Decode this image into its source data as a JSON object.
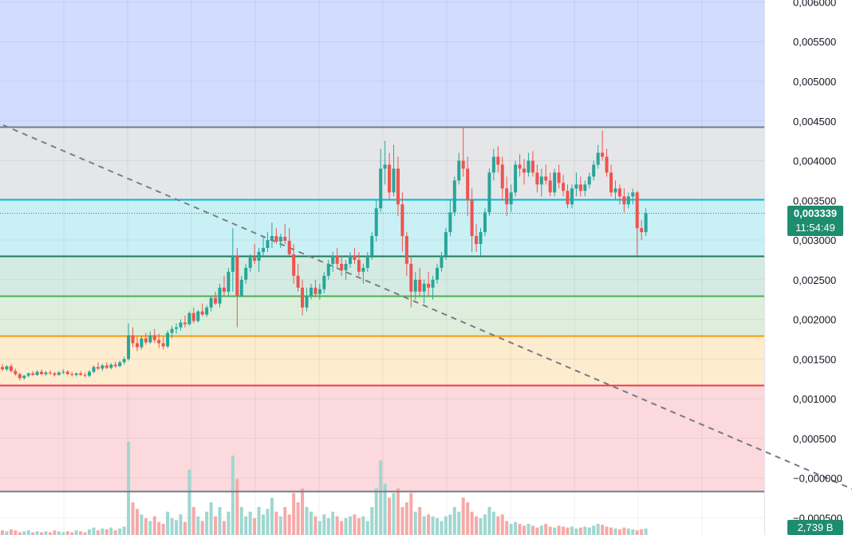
{
  "chart_data": {
    "type": "candlestick",
    "title": "",
    "xlabel": "",
    "ylabel": "",
    "ylim": [
      -0.00053,
      0.006
    ],
    "y_ticks": [
      "0,006000",
      "0,005500",
      "0,005000",
      "0,004500",
      "0,004000",
      "0,003500",
      "0,003000",
      "0,002500",
      "0,002000",
      "0,001500",
      "0,001000",
      "0,000500",
      "−0,000000",
      "−0,000500"
    ],
    "y_tick_values": [
      0.006,
      0.0055,
      0.005,
      0.0045,
      0.004,
      0.0035,
      0.003,
      0.0025,
      0.002,
      0.0015,
      0.001,
      0.0005,
      0.0,
      -0.0005
    ],
    "last_price": "0,003339",
    "last_price_value": 0.003339,
    "countdown": "11:54:49",
    "volume_last": "2,739 B",
    "levels": [
      {
        "price": 0.004427,
        "color": "#787b86"
      },
      {
        "price": 0.003516,
        "color": "#00bcd4"
      },
      {
        "price": 0.0028,
        "color": "#1e7a5a"
      },
      {
        "price": 0.002296,
        "color": "#4caf50"
      },
      {
        "price": 0.001795,
        "color": "#ff9800"
      },
      {
        "price": 0.001168,
        "color": "#f23645"
      },
      {
        "price": -0.00016,
        "color": "#787b86"
      }
    ],
    "zones": [
      {
        "from": 0.004427,
        "to": 0.0062,
        "color": "#d1dcff"
      },
      {
        "from": 0.003516,
        "to": 0.004427,
        "color": "#e5e6e8"
      },
      {
        "from": 0.0028,
        "to": 0.003516,
        "color": "#c9f0f5"
      },
      {
        "from": 0.002296,
        "to": 0.0028,
        "color": "#d3ebe2"
      },
      {
        "from": 0.001795,
        "to": 0.002296,
        "color": "#ddefdc"
      },
      {
        "from": 0.001168,
        "to": 0.001795,
        "color": "#feeccf"
      },
      {
        "from": -0.00016,
        "to": 0.001168,
        "color": "#fbd9dd"
      }
    ],
    "trendline": {
      "from": {
        "index": -2,
        "price": 0.0045
      },
      "to": {
        "index": 196,
        "price": -0.00015
      }
    },
    "colors": {
      "up": "#26a69a",
      "down": "#ef5350",
      "up_volume": "#9fd7d0",
      "down_volume": "#f5aaa8",
      "badge": "#1e8c6e"
    },
    "price_scale_label": "0,003339",
    "candles": {
      "start_index": 0,
      "note_series": "OHLC per bar",
      "ohlc": [
        [
          0.0014,
          0.00144,
          0.00135,
          0.00137
        ],
        [
          0.00137,
          0.00142,
          0.00135,
          0.00141
        ],
        [
          0.00141,
          0.00144,
          0.00133,
          0.00135
        ],
        [
          0.00135,
          0.00138,
          0.00129,
          0.00131
        ],
        [
          0.00131,
          0.00133,
          0.00123,
          0.00126
        ],
        [
          0.00126,
          0.0013,
          0.00124,
          0.00129
        ],
        [
          0.00129,
          0.00133,
          0.00127,
          0.00132
        ],
        [
          0.00132,
          0.00135,
          0.00129,
          0.0013
        ],
        [
          0.0013,
          0.00136,
          0.00129,
          0.00134
        ],
        [
          0.00134,
          0.00137,
          0.0013,
          0.00131
        ],
        [
          0.00131,
          0.00135,
          0.00129,
          0.00133
        ],
        [
          0.00133,
          0.00136,
          0.0013,
          0.00132
        ],
        [
          0.00132,
          0.00134,
          0.00128,
          0.0013
        ],
        [
          0.0013,
          0.00135,
          0.00129,
          0.00133
        ],
        [
          0.00133,
          0.00137,
          0.00131,
          0.00134
        ],
        [
          0.00134,
          0.00136,
          0.0013,
          0.00131
        ],
        [
          0.00131,
          0.00134,
          0.00128,
          0.0013
        ],
        [
          0.0013,
          0.00133,
          0.00128,
          0.00132
        ],
        [
          0.00132,
          0.00135,
          0.00129,
          0.0013
        ],
        [
          0.0013,
          0.00133,
          0.00127,
          0.00129
        ],
        [
          0.00129,
          0.00136,
          0.00127,
          0.00134
        ],
        [
          0.00134,
          0.00142,
          0.00132,
          0.0014
        ],
        [
          0.0014,
          0.00146,
          0.00136,
          0.00138
        ],
        [
          0.00138,
          0.00144,
          0.00135,
          0.00142
        ],
        [
          0.00142,
          0.00146,
          0.00137,
          0.00139
        ],
        [
          0.00139,
          0.00145,
          0.00137,
          0.00143
        ],
        [
          0.00143,
          0.00147,
          0.00139,
          0.00141
        ],
        [
          0.00141,
          0.00148,
          0.0014,
          0.00146
        ],
        [
          0.00146,
          0.00153,
          0.00143,
          0.0015
        ],
        [
          0.0015,
          0.00195,
          0.00148,
          0.0018
        ],
        [
          0.0018,
          0.0019,
          0.00165,
          0.0017
        ],
        [
          0.0017,
          0.00178,
          0.0016,
          0.00165
        ],
        [
          0.00165,
          0.0018,
          0.00162,
          0.00176
        ],
        [
          0.00176,
          0.00183,
          0.00168,
          0.00171
        ],
        [
          0.00171,
          0.00185,
          0.00169,
          0.0018
        ],
        [
          0.0018,
          0.00188,
          0.0017,
          0.00174
        ],
        [
          0.00174,
          0.00182,
          0.00164,
          0.0017
        ],
        [
          0.0017,
          0.00178,
          0.00162,
          0.00166
        ],
        [
          0.00166,
          0.00186,
          0.00164,
          0.00183
        ],
        [
          0.00183,
          0.00192,
          0.00176,
          0.00188
        ],
        [
          0.00188,
          0.00195,
          0.00182,
          0.0019
        ],
        [
          0.0019,
          0.002,
          0.00186,
          0.00196
        ],
        [
          0.00196,
          0.00205,
          0.0019,
          0.00194
        ],
        [
          0.00194,
          0.0021,
          0.00192,
          0.00208
        ],
        [
          0.00208,
          0.00215,
          0.00195,
          0.00198
        ],
        [
          0.00198,
          0.00212,
          0.00196,
          0.0021
        ],
        [
          0.0021,
          0.0022,
          0.00204,
          0.00206
        ],
        [
          0.00206,
          0.00218,
          0.00203,
          0.00215
        ],
        [
          0.00215,
          0.0023,
          0.0021,
          0.00227
        ],
        [
          0.00227,
          0.00235,
          0.00218,
          0.0022
        ],
        [
          0.0022,
          0.00245,
          0.00215,
          0.0024
        ],
        [
          0.0024,
          0.00255,
          0.0023,
          0.00235
        ],
        [
          0.00235,
          0.00265,
          0.0023,
          0.0026
        ],
        [
          0.0026,
          0.00315,
          0.00235,
          0.0028
        ],
        [
          0.0028,
          0.0029,
          0.0019,
          0.0023
        ],
        [
          0.0023,
          0.00255,
          0.00228,
          0.0025
        ],
        [
          0.0025,
          0.0027,
          0.00245,
          0.00265
        ],
        [
          0.00265,
          0.00282,
          0.0026,
          0.00278
        ],
        [
          0.00278,
          0.00295,
          0.0027,
          0.00274
        ],
        [
          0.00274,
          0.0029,
          0.0026,
          0.00285
        ],
        [
          0.00285,
          0.00305,
          0.0028,
          0.0029
        ],
        [
          0.0029,
          0.0031,
          0.00285,
          0.003
        ],
        [
          0.003,
          0.00322,
          0.0029,
          0.00305
        ],
        [
          0.00305,
          0.00315,
          0.00295,
          0.00298
        ],
        [
          0.00298,
          0.00308,
          0.0029,
          0.00304
        ],
        [
          0.00304,
          0.0032,
          0.00295,
          0.00299
        ],
        [
          0.00299,
          0.00315,
          0.0028,
          0.00282
        ],
        [
          0.00282,
          0.00295,
          0.00245,
          0.00255
        ],
        [
          0.00255,
          0.0027,
          0.00235,
          0.0024
        ],
        [
          0.0024,
          0.0025,
          0.00205,
          0.00215
        ],
        [
          0.00215,
          0.0024,
          0.0021,
          0.0023
        ],
        [
          0.0023,
          0.00245,
          0.00225,
          0.0024
        ],
        [
          0.0024,
          0.0025,
          0.00228,
          0.00232
        ],
        [
          0.00232,
          0.00245,
          0.00225,
          0.00238
        ],
        [
          0.00238,
          0.0026,
          0.00233,
          0.00255
        ],
        [
          0.00255,
          0.00275,
          0.0025,
          0.0027
        ],
        [
          0.0027,
          0.00285,
          0.0026,
          0.0028
        ],
        [
          0.0028,
          0.0029,
          0.00265,
          0.0027
        ],
        [
          0.0027,
          0.0028,
          0.00255,
          0.00262
        ],
        [
          0.00262,
          0.00275,
          0.0025,
          0.0027
        ],
        [
          0.0027,
          0.00285,
          0.00265,
          0.0028
        ],
        [
          0.0028,
          0.0029,
          0.0027,
          0.00275
        ],
        [
          0.00275,
          0.00285,
          0.00255,
          0.0026
        ],
        [
          0.0026,
          0.0027,
          0.00245,
          0.00265
        ],
        [
          0.00265,
          0.00285,
          0.0026,
          0.0028
        ],
        [
          0.0028,
          0.0031,
          0.00275,
          0.00305
        ],
        [
          0.00305,
          0.0035,
          0.00298,
          0.0034
        ],
        [
          0.0034,
          0.00415,
          0.00335,
          0.0039
        ],
        [
          0.0039,
          0.00425,
          0.0037,
          0.00395
        ],
        [
          0.00395,
          0.0041,
          0.0035,
          0.0036
        ],
        [
          0.0036,
          0.0042,
          0.00355,
          0.0039
        ],
        [
          0.0039,
          0.00405,
          0.0033,
          0.00345
        ],
        [
          0.00345,
          0.0036,
          0.00285,
          0.00305
        ],
        [
          0.00305,
          0.0031,
          0.00255,
          0.0027
        ],
        [
          0.0027,
          0.0028,
          0.00215,
          0.00235
        ],
        [
          0.00235,
          0.0026,
          0.00225,
          0.0025
        ],
        [
          0.0025,
          0.00265,
          0.0023,
          0.00235
        ],
        [
          0.00235,
          0.0025,
          0.0022,
          0.00245
        ],
        [
          0.00245,
          0.0026,
          0.0023,
          0.0024
        ],
        [
          0.0024,
          0.00255,
          0.00225,
          0.0025
        ],
        [
          0.0025,
          0.0027,
          0.00245,
          0.00265
        ],
        [
          0.00265,
          0.00285,
          0.0026,
          0.0028
        ],
        [
          0.0028,
          0.00315,
          0.00275,
          0.0031
        ],
        [
          0.0031,
          0.0035,
          0.00305,
          0.00335
        ],
        [
          0.00335,
          0.0038,
          0.0033,
          0.00375
        ],
        [
          0.00375,
          0.0041,
          0.0037,
          0.004
        ],
        [
          0.004,
          0.00443,
          0.0038,
          0.0039
        ],
        [
          0.0039,
          0.00405,
          0.0033,
          0.0035
        ],
        [
          0.0035,
          0.00365,
          0.00285,
          0.00305
        ],
        [
          0.00305,
          0.0032,
          0.00285,
          0.00295
        ],
        [
          0.00295,
          0.00315,
          0.0028,
          0.0031
        ],
        [
          0.0031,
          0.0034,
          0.00305,
          0.00335
        ],
        [
          0.00335,
          0.0039,
          0.0033,
          0.00385
        ],
        [
          0.00385,
          0.00415,
          0.00375,
          0.00405
        ],
        [
          0.00405,
          0.00418,
          0.00385,
          0.00395
        ],
        [
          0.00395,
          0.00405,
          0.0035,
          0.00365
        ],
        [
          0.00365,
          0.0038,
          0.0033,
          0.00345
        ],
        [
          0.00345,
          0.0037,
          0.00335,
          0.0036
        ],
        [
          0.0036,
          0.004,
          0.00355,
          0.00395
        ],
        [
          0.00395,
          0.00408,
          0.0038,
          0.0039
        ],
        [
          0.0039,
          0.00402,
          0.0037,
          0.00385
        ],
        [
          0.00385,
          0.0041,
          0.0038,
          0.004
        ],
        [
          0.004,
          0.00412,
          0.0038,
          0.00385
        ],
        [
          0.00385,
          0.00395,
          0.0036,
          0.0037
        ],
        [
          0.0037,
          0.0039,
          0.00355,
          0.0038
        ],
        [
          0.0038,
          0.00395,
          0.0037,
          0.00375
        ],
        [
          0.00375,
          0.00385,
          0.00355,
          0.0036
        ],
        [
          0.0036,
          0.0039,
          0.00355,
          0.00385
        ],
        [
          0.00385,
          0.00395,
          0.00365,
          0.00372
        ],
        [
          0.00372,
          0.00382,
          0.00355,
          0.00362
        ],
        [
          0.00362,
          0.0037,
          0.0034,
          0.00345
        ],
        [
          0.00345,
          0.0037,
          0.0034,
          0.00365
        ],
        [
          0.00365,
          0.00385,
          0.00355,
          0.0037
        ],
        [
          0.0037,
          0.0038,
          0.00355,
          0.00362
        ],
        [
          0.00362,
          0.00375,
          0.00355,
          0.0037
        ],
        [
          0.0037,
          0.00385,
          0.00365,
          0.0038
        ],
        [
          0.0038,
          0.004,
          0.00375,
          0.00395
        ],
        [
          0.00395,
          0.0042,
          0.0039,
          0.0041
        ],
        [
          0.0041,
          0.00438,
          0.004,
          0.00405
        ],
        [
          0.00405,
          0.00415,
          0.0038,
          0.00385
        ],
        [
          0.00385,
          0.00395,
          0.00355,
          0.0036
        ],
        [
          0.0036,
          0.00375,
          0.0035,
          0.00365
        ],
        [
          0.00365,
          0.0037,
          0.00345,
          0.00355
        ],
        [
          0.00355,
          0.00365,
          0.00335,
          0.00345
        ],
        [
          0.00345,
          0.0036,
          0.0034,
          0.00355
        ],
        [
          0.00355,
          0.00365,
          0.00345,
          0.0036
        ],
        [
          0.0036,
          0.00362,
          0.0028,
          0.00315
        ],
        [
          0.00315,
          0.00325,
          0.003,
          0.0031
        ],
        [
          0.0031,
          0.0034,
          0.00305,
          0.003339
        ]
      ],
      "volume": [
        0.05,
        0.04,
        0.06,
        0.05,
        0.03,
        0.04,
        0.05,
        0.03,
        0.04,
        0.03,
        0.04,
        0.03,
        0.05,
        0.04,
        0.03,
        0.04,
        0.03,
        0.05,
        0.04,
        0.03,
        0.06,
        0.08,
        0.05,
        0.07,
        0.06,
        0.08,
        0.05,
        0.07,
        0.09,
        1.0,
        0.35,
        0.28,
        0.22,
        0.18,
        0.15,
        0.2,
        0.14,
        0.12,
        0.25,
        0.18,
        0.16,
        0.22,
        0.14,
        0.7,
        0.3,
        0.2,
        0.15,
        0.25,
        0.35,
        0.2,
        0.3,
        0.15,
        0.25,
        0.85,
        0.6,
        0.3,
        0.2,
        0.25,
        0.18,
        0.3,
        0.22,
        0.28,
        0.4,
        0.25,
        0.2,
        0.3,
        0.22,
        0.45,
        0.35,
        0.5,
        0.3,
        0.25,
        0.2,
        0.15,
        0.22,
        0.18,
        0.25,
        0.2,
        0.15,
        0.18,
        0.2,
        0.22,
        0.18,
        0.2,
        0.15,
        0.3,
        0.5,
        0.8,
        0.55,
        0.4,
        0.45,
        0.5,
        0.3,
        0.35,
        0.45,
        0.25,
        0.3,
        0.2,
        0.22,
        0.2,
        0.18,
        0.15,
        0.2,
        0.22,
        0.3,
        0.25,
        0.4,
        0.35,
        0.25,
        0.2,
        0.18,
        0.22,
        0.3,
        0.25,
        0.2,
        0.22,
        0.15,
        0.12,
        0.14,
        0.12,
        0.1,
        0.12,
        0.1,
        0.08,
        0.1,
        0.12,
        0.09,
        0.08,
        0.1,
        0.09,
        0.08,
        0.09,
        0.07,
        0.08,
        0.09,
        0.08,
        0.1,
        0.12,
        0.11,
        0.09,
        0.08,
        0.07,
        0.06,
        0.08,
        0.07,
        0.06,
        0.05,
        0.06,
        0.07
      ]
    }
  }
}
